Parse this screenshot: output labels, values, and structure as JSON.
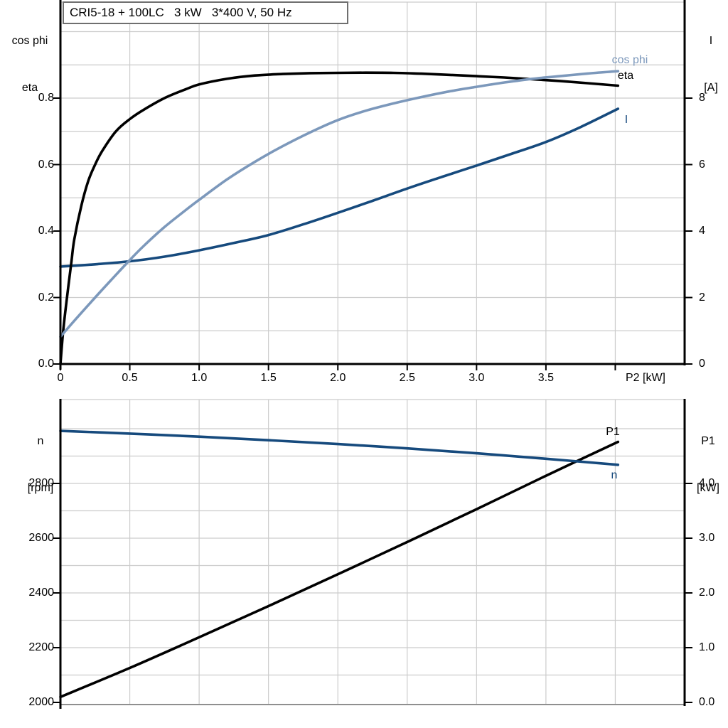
{
  "colors": {
    "eta_curve": "#000000",
    "cos_phi_curve": "#7C98BB",
    "current_curve": "#164A7D",
    "speed_curve": "#164A7D",
    "p1_curve": "#000000",
    "grid": "#CCCCCC",
    "frame_gray": "#8F8F8F",
    "axis_black": "#000000",
    "text": "#000000"
  },
  "chart_data": [
    {
      "type": "line",
      "id": "motor-electrical-curves",
      "title": "CRI5-18 + 100LC   3 kW   3*400 V, 50 Hz",
      "grid": true,
      "legend_position": "end-of-curve-labels",
      "x_axis": {
        "label": "P2 [kW]",
        "min": 0,
        "max": 4.5,
        "grid_step": 0.5,
        "ticks": [
          {
            "v": 0,
            "t": "0"
          },
          {
            "v": 0.5,
            "t": "0.5"
          },
          {
            "v": 1,
            "t": "1.0"
          },
          {
            "v": 1.5,
            "t": "1.5"
          },
          {
            "v": 2,
            "t": "2.0"
          },
          {
            "v": 2.5,
            "t": "2.5"
          },
          {
            "v": 3,
            "t": "3.0"
          },
          {
            "v": 3.5,
            "t": "3.5"
          },
          {
            "v": 4,
            "t": ""
          }
        ]
      },
      "left_axis": {
        "name_lines": [
          "cos phi",
          "eta"
        ],
        "min": 0,
        "max_at_frame": 1.089,
        "grid_step": 0.1,
        "ticks": [
          {
            "v": 0.0,
            "t": "0.0"
          },
          {
            "v": 0.2,
            "t": "0.2"
          },
          {
            "v": 0.4,
            "t": "0.4"
          },
          {
            "v": 0.6,
            "t": "0.6"
          },
          {
            "v": 0.8,
            "t": "0.8"
          }
        ]
      },
      "right_axis": {
        "name_lines": [
          "I",
          "[A]"
        ],
        "min": 0,
        "max_at_frame": 10.89,
        "ticks": [
          {
            "v": 0,
            "t": "0"
          },
          {
            "v": 2,
            "t": "2"
          },
          {
            "v": 4,
            "t": "4"
          },
          {
            "v": 6,
            "t": "6"
          },
          {
            "v": 8,
            "t": "8"
          }
        ]
      },
      "series": [
        {
          "name": "I",
          "label": "I",
          "axis": "right",
          "color_key": "current_curve",
          "points": [
            [
              0,
              2.93
            ],
            [
              0.25,
              3.0
            ],
            [
              0.5,
              3.09
            ],
            [
              0.75,
              3.23
            ],
            [
              1.0,
              3.42
            ],
            [
              1.25,
              3.64
            ],
            [
              1.5,
              3.88
            ],
            [
              1.75,
              4.2
            ],
            [
              2.0,
              4.55
            ],
            [
              2.25,
              4.91
            ],
            [
              2.5,
              5.28
            ],
            [
              2.75,
              5.63
            ],
            [
              3.0,
              5.97
            ],
            [
              3.25,
              6.32
            ],
            [
              3.5,
              6.68
            ],
            [
              3.75,
              7.13
            ],
            [
              4.02,
              7.68
            ]
          ]
        },
        {
          "name": "eta",
          "label": "eta",
          "axis": "left",
          "color_key": "eta_curve",
          "points": [
            [
              0,
              0
            ],
            [
              0.02,
              0.1
            ],
            [
              0.05,
              0.21
            ],
            [
              0.08,
              0.31
            ],
            [
              0.1,
              0.375
            ],
            [
              0.15,
              0.475
            ],
            [
              0.2,
              0.55
            ],
            [
              0.25,
              0.6
            ],
            [
              0.3,
              0.64
            ],
            [
              0.4,
              0.7
            ],
            [
              0.5,
              0.737
            ],
            [
              0.6,
              0.765
            ],
            [
              0.75,
              0.8
            ],
            [
              0.9,
              0.826
            ],
            [
              1.0,
              0.841
            ],
            [
              1.2,
              0.858
            ],
            [
              1.4,
              0.868
            ],
            [
              1.6,
              0.8725
            ],
            [
              1.8,
              0.875
            ],
            [
              2.0,
              0.876
            ],
            [
              2.2,
              0.8765
            ],
            [
              2.4,
              0.876
            ],
            [
              2.6,
              0.8735
            ],
            [
              2.8,
              0.87
            ],
            [
              3.0,
              0.866
            ],
            [
              3.2,
              0.862
            ],
            [
              3.4,
              0.857
            ],
            [
              3.6,
              0.8515
            ],
            [
              3.8,
              0.845
            ],
            [
              4.02,
              0.8375
            ]
          ]
        },
        {
          "name": "cos phi",
          "label": "cos phi",
          "axis": "left",
          "color_key": "cos_phi_curve",
          "points": [
            [
              0,
              0.082
            ],
            [
              0.1,
              0.13
            ],
            [
              0.25,
              0.2
            ],
            [
              0.4,
              0.268
            ],
            [
              0.5,
              0.313
            ],
            [
              0.6,
              0.355
            ],
            [
              0.75,
              0.412
            ],
            [
              0.9,
              0.462
            ],
            [
              1.0,
              0.494
            ],
            [
              1.2,
              0.555
            ],
            [
              1.4,
              0.608
            ],
            [
              1.6,
              0.655
            ],
            [
              1.8,
              0.697
            ],
            [
              2.0,
              0.734
            ],
            [
              2.2,
              0.762
            ],
            [
              2.4,
              0.784
            ],
            [
              2.6,
              0.803
            ],
            [
              2.8,
              0.82
            ],
            [
              3.0,
              0.834
            ],
            [
              3.2,
              0.847
            ],
            [
              3.4,
              0.858
            ],
            [
              3.6,
              0.866
            ],
            [
              3.8,
              0.874
            ],
            [
              4.02,
              0.881
            ]
          ]
        }
      ]
    },
    {
      "type": "line",
      "id": "speed-and-input-power",
      "grid": true,
      "x_axis": {
        "label": "",
        "min": 0,
        "max": 4.5,
        "grid_step": 0.5,
        "ticks": []
      },
      "left_axis": {
        "name_lines": [
          "n",
          "[rpm]"
        ],
        "min_at_frame": 1984,
        "max_at_frame": 3107,
        "grid_step_rpm": 100,
        "ticks": [
          {
            "v": 2800,
            "t": "2800"
          },
          {
            "v": 2600,
            "t": "2600"
          },
          {
            "v": 2400,
            "t": "2400"
          },
          {
            "v": 2200,
            "t": "2200"
          },
          {
            "v": 2000,
            "t": "2000"
          }
        ]
      },
      "right_axis": {
        "name_lines": [
          "P1",
          "[kW]"
        ],
        "min_at_frame": -0.04,
        "max_at_frame": 5.53,
        "grid_step_kw": 0.5,
        "ticks": [
          {
            "v": 4.0,
            "t": "4.0"
          },
          {
            "v": 3.0,
            "t": "3.0"
          },
          {
            "v": 2.0,
            "t": "2.0"
          },
          {
            "v": 1.0,
            "t": "1.0"
          },
          {
            "v": 0.0,
            "t": "0.0"
          }
        ]
      },
      "series": [
        {
          "name": "P1",
          "label": "P1",
          "axis": "right",
          "color_key": "p1_curve",
          "points": [
            [
              0,
              0.1
            ],
            [
              0.5,
              0.63
            ],
            [
              1.0,
              1.19
            ],
            [
              1.5,
              1.76
            ],
            [
              2.0,
              2.34
            ],
            [
              2.5,
              2.93
            ],
            [
              3.0,
              3.53
            ],
            [
              3.5,
              4.14
            ],
            [
              4.02,
              4.76
            ]
          ]
        },
        {
          "name": "n",
          "label": "n",
          "axis": "left",
          "color_key": "speed_curve",
          "points": [
            [
              0,
              2992
            ],
            [
              0.5,
              2982
            ],
            [
              1.0,
              2971
            ],
            [
              1.5,
              2958
            ],
            [
              2.0,
              2944
            ],
            [
              2.5,
              2928
            ],
            [
              3.0,
              2910
            ],
            [
              3.5,
              2890
            ],
            [
              4.02,
              2868
            ]
          ]
        }
      ]
    }
  ]
}
